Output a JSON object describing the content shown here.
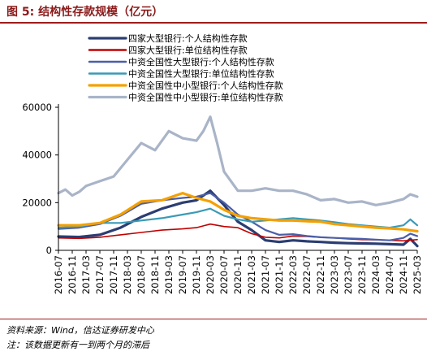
{
  "figure": {
    "title": "图 5: 结构性存款规模（亿元）",
    "source": "资料来源：Wind，信达证券研发中心",
    "note": "注：该数据更新有一到两个月的滞后"
  },
  "chart_data": {
    "type": "line",
    "title": "",
    "xlabel": "",
    "ylabel": "",
    "ylim": [
      0,
      60000
    ],
    "yticks": [
      0,
      20000,
      40000,
      60000
    ],
    "grid": false,
    "legend_position": "top-left",
    "x_range": [
      "2016-07",
      "2025-03"
    ],
    "x_ticks": [
      "2016-07",
      "2016-11",
      "2017-03",
      "2017-07",
      "2017-11",
      "2018-03",
      "2018-07",
      "2018-11",
      "2019-03",
      "2019-07",
      "2019-11",
      "2020-03",
      "2020-07",
      "2020-11",
      "2021-03",
      "2021-07",
      "2021-11",
      "2022-03",
      "2022-07",
      "2022-11",
      "2023-03",
      "2023-07",
      "2023-11",
      "2024-03",
      "2024-07",
      "2024-11",
      "2025-03"
    ],
    "series": [
      {
        "name": "四家大型银行:个人结构性存款",
        "color": "#2b3d72",
        "width": 3.2,
        "points": [
          [
            "2016-07",
            5800
          ],
          [
            "2017-01",
            5600
          ],
          [
            "2017-07",
            6500
          ],
          [
            "2018-01",
            9500
          ],
          [
            "2018-07",
            14000
          ],
          [
            "2019-01",
            17500
          ],
          [
            "2019-07",
            20000
          ],
          [
            "2019-11",
            21000
          ],
          [
            "2020-03",
            25000
          ],
          [
            "2020-07",
            19000
          ],
          [
            "2020-11",
            12000
          ],
          [
            "2021-03",
            8500
          ],
          [
            "2021-07",
            4200
          ],
          [
            "2021-11",
            3500
          ],
          [
            "2022-03",
            4200
          ],
          [
            "2022-07",
            3800
          ],
          [
            "2022-11",
            3500
          ],
          [
            "2023-03",
            3200
          ],
          [
            "2023-07",
            3000
          ],
          [
            "2023-11",
            2900
          ],
          [
            "2024-03",
            2800
          ],
          [
            "2024-07",
            2600
          ],
          [
            "2024-11",
            2400
          ],
          [
            "2025-01",
            4800
          ],
          [
            "2025-03",
            1800
          ]
        ]
      },
      {
        "name": "四家大型银行:单位结构性存款",
        "color": "#c00000",
        "width": 1.6,
        "points": [
          [
            "2016-07",
            5200
          ],
          [
            "2017-01",
            5000
          ],
          [
            "2017-07",
            5500
          ],
          [
            "2018-01",
            6500
          ],
          [
            "2018-07",
            7500
          ],
          [
            "2019-01",
            8500
          ],
          [
            "2019-07",
            9000
          ],
          [
            "2019-11",
            9500
          ],
          [
            "2020-03",
            11000
          ],
          [
            "2020-07",
            10000
          ],
          [
            "2020-11",
            9500
          ],
          [
            "2021-03",
            7000
          ],
          [
            "2021-07",
            5500
          ],
          [
            "2021-11",
            5200
          ],
          [
            "2022-03",
            6000
          ],
          [
            "2022-07",
            5800
          ],
          [
            "2022-11",
            5500
          ],
          [
            "2023-03",
            5200
          ],
          [
            "2023-07",
            4800
          ],
          [
            "2023-11",
            4500
          ],
          [
            "2024-03",
            4400
          ],
          [
            "2024-07",
            4200
          ],
          [
            "2024-11",
            4000
          ],
          [
            "2025-03",
            4500
          ]
        ]
      },
      {
        "name": "中资全国性大型银行:个人结构性存款",
        "color": "#4b5fa8",
        "width": 2.2,
        "points": [
          [
            "2016-07",
            9000
          ],
          [
            "2017-01",
            9500
          ],
          [
            "2017-07",
            11000
          ],
          [
            "2018-01",
            14500
          ],
          [
            "2018-07",
            19500
          ],
          [
            "2019-01",
            21000
          ],
          [
            "2019-07",
            22000
          ],
          [
            "2019-11",
            22500
          ],
          [
            "2020-03",
            24000
          ],
          [
            "2020-07",
            20000
          ],
          [
            "2020-11",
            15000
          ],
          [
            "2021-03",
            12000
          ],
          [
            "2021-07",
            8500
          ],
          [
            "2021-11",
            6500
          ],
          [
            "2022-03",
            6800
          ],
          [
            "2022-07",
            6000
          ],
          [
            "2022-11",
            5500
          ],
          [
            "2023-03",
            5200
          ],
          [
            "2023-07",
            5000
          ],
          [
            "2023-11",
            4800
          ],
          [
            "2024-03",
            4500
          ],
          [
            "2024-07",
            4200
          ],
          [
            "2024-11",
            5200
          ],
          [
            "2025-01",
            7000
          ],
          [
            "2025-03",
            6000
          ]
        ]
      },
      {
        "name": "中资全国性大型银行:单位结构性存款",
        "color": "#3a9ab5",
        "width": 2.2,
        "points": [
          [
            "2016-07",
            9500
          ],
          [
            "2017-01",
            10000
          ],
          [
            "2017-07",
            11500
          ],
          [
            "2018-01",
            11500
          ],
          [
            "2018-07",
            12500
          ],
          [
            "2019-01",
            13500
          ],
          [
            "2019-07",
            15000
          ],
          [
            "2019-11",
            16000
          ],
          [
            "2020-03",
            17500
          ],
          [
            "2020-07",
            14500
          ],
          [
            "2020-11",
            13000
          ],
          [
            "2021-03",
            12000
          ],
          [
            "2021-07",
            12500
          ],
          [
            "2021-11",
            13000
          ],
          [
            "2022-03",
            13500
          ],
          [
            "2022-07",
            13000
          ],
          [
            "2022-11",
            12500
          ],
          [
            "2023-03",
            11800
          ],
          [
            "2023-07",
            11000
          ],
          [
            "2023-11",
            10500
          ],
          [
            "2024-03",
            10000
          ],
          [
            "2024-07",
            9500
          ],
          [
            "2024-11",
            10500
          ],
          [
            "2025-01",
            13000
          ],
          [
            "2025-03",
            10500
          ]
        ]
      },
      {
        "name": "中资全国性中小型银行:个人结构性存款",
        "color": "#f4a000",
        "width": 3.2,
        "points": [
          [
            "2016-07",
            10500
          ],
          [
            "2017-01",
            10500
          ],
          [
            "2017-07",
            11500
          ],
          [
            "2018-01",
            15000
          ],
          [
            "2018-07",
            20500
          ],
          [
            "2019-01",
            21000
          ],
          [
            "2019-07",
            24000
          ],
          [
            "2019-11",
            22000
          ],
          [
            "2020-03",
            20500
          ],
          [
            "2020-07",
            17000
          ],
          [
            "2020-11",
            14500
          ],
          [
            "2021-03",
            13500
          ],
          [
            "2021-07",
            13000
          ],
          [
            "2021-11",
            12500
          ],
          [
            "2022-03",
            12500
          ],
          [
            "2022-07",
            12200
          ],
          [
            "2022-11",
            12000
          ],
          [
            "2023-03",
            11000
          ],
          [
            "2023-07",
            10500
          ],
          [
            "2023-11",
            10000
          ],
          [
            "2024-03",
            9500
          ],
          [
            "2024-07",
            9200
          ],
          [
            "2024-11",
            8800
          ],
          [
            "2025-03",
            8000
          ]
        ]
      },
      {
        "name": "中资全国性中小型银行:单位结构性存款",
        "color": "#a9b4c8",
        "width": 3.2,
        "points": [
          [
            "2016-07",
            24000
          ],
          [
            "2016-09",
            25500
          ],
          [
            "2016-11",
            23000
          ],
          [
            "2017-01",
            24500
          ],
          [
            "2017-03",
            27000
          ],
          [
            "2017-07",
            29000
          ],
          [
            "2017-11",
            31000
          ],
          [
            "2018-03",
            38000
          ],
          [
            "2018-07",
            45000
          ],
          [
            "2018-11",
            42000
          ],
          [
            "2019-03",
            50000
          ],
          [
            "2019-07",
            47000
          ],
          [
            "2019-11",
            46000
          ],
          [
            "2020-01",
            50000
          ],
          [
            "2020-03",
            56000
          ],
          [
            "2020-05",
            45000
          ],
          [
            "2020-07",
            33000
          ],
          [
            "2020-11",
            25000
          ],
          [
            "2021-03",
            25000
          ],
          [
            "2021-07",
            26000
          ],
          [
            "2021-11",
            25000
          ],
          [
            "2022-03",
            25000
          ],
          [
            "2022-07",
            23500
          ],
          [
            "2022-11",
            21000
          ],
          [
            "2023-03",
            21500
          ],
          [
            "2023-07",
            20000
          ],
          [
            "2023-11",
            20500
          ],
          [
            "2024-03",
            19000
          ],
          [
            "2024-07",
            20000
          ],
          [
            "2024-11",
            21500
          ],
          [
            "2025-01",
            23500
          ],
          [
            "2025-03",
            22500
          ]
        ]
      }
    ]
  }
}
